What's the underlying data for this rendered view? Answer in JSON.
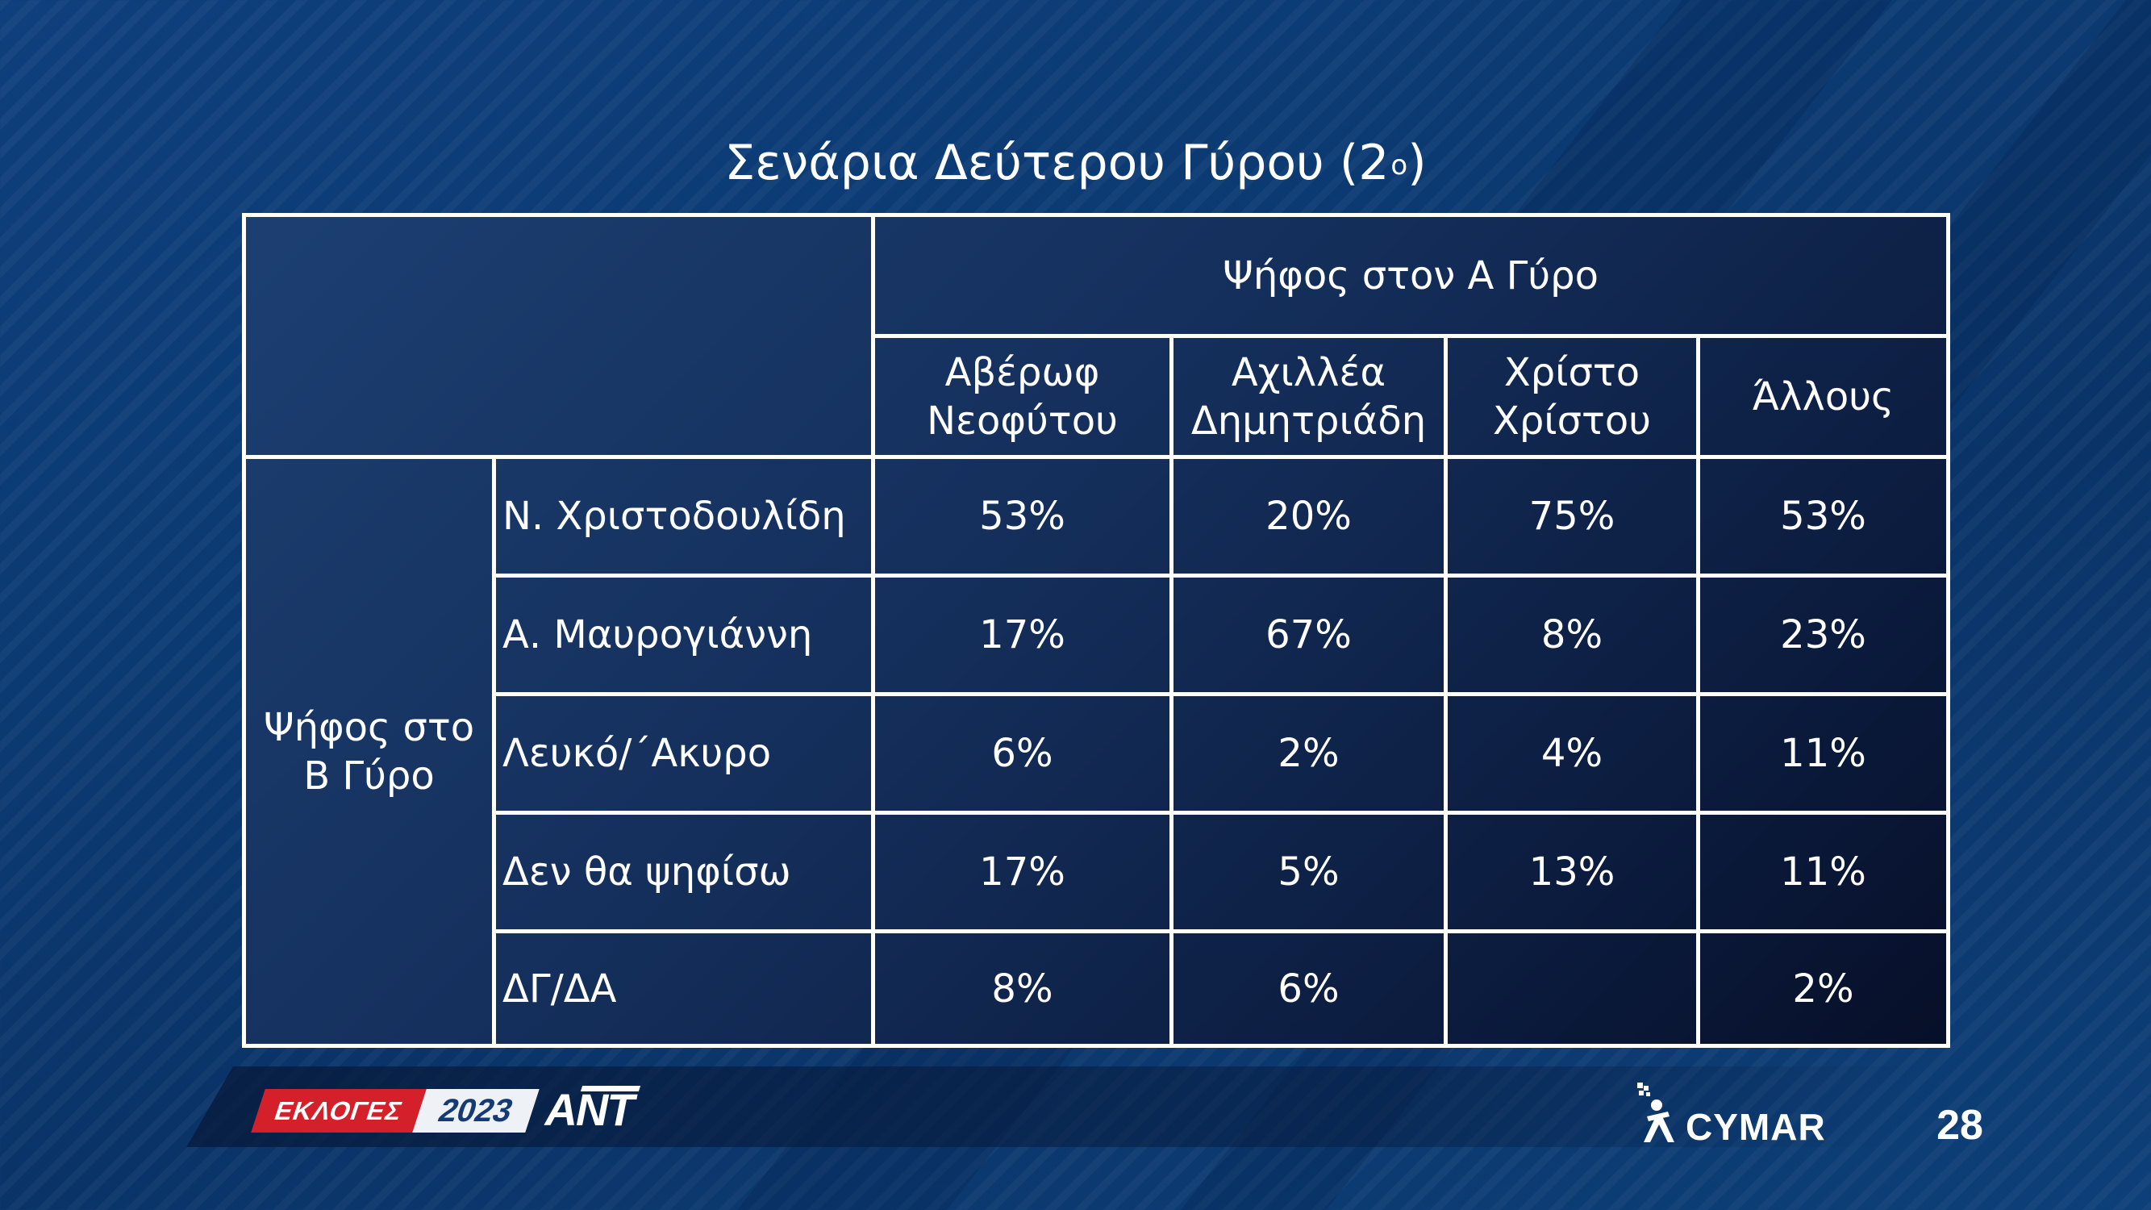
{
  "slide": {
    "title": "Σενάρια Δεύτερου Γύρου (2",
    "title_sup": "ο",
    "title_close": ")",
    "page_number": "28"
  },
  "table": {
    "header_group": "Ψήφος στον Α Γύρο",
    "row_group_line1": "Ψήφος στο",
    "row_group_line2": "Β Γύρο",
    "columns": [
      {
        "line1": "Αβέρωφ",
        "line2": "Νεοφύτου"
      },
      {
        "line1": "Αχιλλέα",
        "line2": "Δημητριάδη"
      },
      {
        "line1": "Χρίστο",
        "line2": "Χρίστου"
      },
      {
        "line1": "Άλλους",
        "line2": ""
      }
    ],
    "rows": [
      {
        "label": "Ν. Χριστοδουλίδη",
        "values": [
          "53%",
          "20%",
          "75%",
          "53%"
        ]
      },
      {
        "label": "Α. Μαυρογιάννη",
        "values": [
          "17%",
          "67%",
          "8%",
          "23%"
        ]
      },
      {
        "label": "Λευκό/΄Ακυρο",
        "values": [
          "6%",
          "2%",
          "4%",
          "11%"
        ]
      },
      {
        "label": "Δεν θα ψηφίσω",
        "values": [
          "17%",
          "5%",
          "13%",
          "11%"
        ]
      },
      {
        "label": "ΔΓ/ΔΑ",
        "values": [
          "8%",
          "6%",
          "",
          "2%"
        ]
      }
    ]
  },
  "footer": {
    "ekloges_label": "ΕΚΛΟΓΕΣ",
    "year_label": "2023",
    "channel_label": "ANT",
    "brand": "CYMAR"
  },
  "colors": {
    "background": "#0b3a72",
    "table_top": "#1c3f72",
    "table_bottom": "#070f28",
    "border": "#ffffff",
    "ekloges_red": "#d3202a"
  }
}
